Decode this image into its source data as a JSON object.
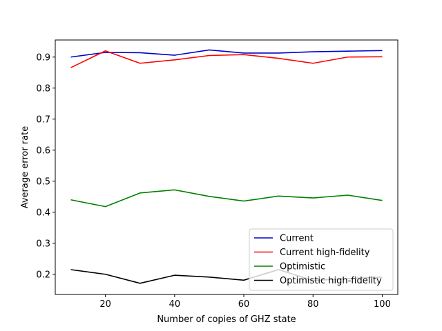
{
  "chart_data": {
    "type": "line",
    "xlabel": "Number of copies of GHZ state",
    "ylabel": "Average error rate",
    "xlim": [
      5.5,
      104.5
    ],
    "ylim": [
      0.135,
      0.955
    ],
    "xticks": [
      20,
      40,
      60,
      80,
      100
    ],
    "xtick_labels": [
      "20",
      "40",
      "60",
      "80",
      "100"
    ],
    "yticks": [
      0.2,
      0.3,
      0.4,
      0.5,
      0.6,
      0.7,
      0.8,
      0.9
    ],
    "ytick_labels": [
      "0.2",
      "0.3",
      "0.4",
      "0.5",
      "0.6",
      "0.7",
      "0.8",
      "0.9"
    ],
    "grid": false,
    "legend_position": "lower-right",
    "x": [
      10,
      20,
      30,
      40,
      50,
      60,
      70,
      80,
      90,
      100
    ],
    "series": [
      {
        "name": "Current",
        "color": "#0000cc",
        "values": [
          0.9,
          0.915,
          0.914,
          0.906,
          0.923,
          0.913,
          0.913,
          0.917,
          0.919,
          0.921
        ]
      },
      {
        "name": "Current high-fidelity",
        "color": "#ff0000",
        "values": [
          0.866,
          0.92,
          0.88,
          0.891,
          0.905,
          0.908,
          0.896,
          0.88,
          0.9,
          0.901
        ]
      },
      {
        "name": "Optimistic",
        "color": "#008000",
        "values": [
          0.44,
          0.418,
          0.462,
          0.472,
          0.451,
          0.436,
          0.452,
          0.446,
          0.455,
          0.438
        ]
      },
      {
        "name": "Optimistic high-fidelity",
        "color": "#000000",
        "values": [
          0.215,
          0.2,
          0.171,
          0.197,
          0.191,
          0.181,
          0.215,
          0.18,
          0.186,
          0.191
        ]
      }
    ]
  }
}
